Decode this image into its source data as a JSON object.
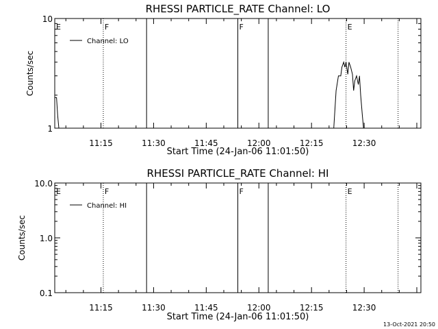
{
  "footer": {
    "timestamp": "13-Oct-2021 20:50"
  },
  "chart_data": [
    {
      "type": "line",
      "title": "RHESSI PARTICLE_RATE Channel: LO",
      "xlabel": "Start Time (24-Jan-06 11:01:50)",
      "ylabel": "Counts/sec",
      "yscale": "log",
      "xlim": [
        "11:01:50",
        "12:46:10"
      ],
      "ylim": [
        1,
        10
      ],
      "xticks": [
        "11:15",
        "11:30",
        "11:45",
        "12:00",
        "12:15",
        "12:30"
      ],
      "yticks": [
        "1",
        "10"
      ],
      "legend": {
        "label": "Channel: LO",
        "position": "top-left"
      },
      "annotations": [
        {
          "text": "E",
          "time": "11:01:50",
          "line": "none"
        },
        {
          "text": "F",
          "time": "11:15:40",
          "line": "dotted"
        },
        {
          "text": "",
          "time": "11:28:00",
          "line": "solid"
        },
        {
          "text": "F",
          "time": "11:54:00",
          "line": "solid"
        },
        {
          "text": "",
          "time": "12:02:40",
          "line": "solid"
        },
        {
          "text": "E",
          "time": "12:24:50",
          "line": "dotted"
        },
        {
          "text": "",
          "time": "12:39:40",
          "line": "dotted"
        }
      ],
      "series": [
        {
          "values": [
            [
              "11:01:50",
              1.9
            ],
            [
              "11:02:20",
              1.9
            ],
            [
              "11:02:40",
              1.3
            ],
            [
              "11:03:00",
              1.0
            ],
            [
              "12:21:20",
              1.0
            ],
            [
              "12:22:00",
              2.2
            ],
            [
              "12:22:40",
              3.0
            ],
            [
              "12:23:20",
              3.0
            ],
            [
              "12:23:40",
              3.6
            ],
            [
              "12:24:10",
              4.0
            ],
            [
              "12:24:30",
              3.6
            ],
            [
              "12:24:50",
              4.0
            ],
            [
              "12:25:20",
              3.1
            ],
            [
              "12:25:40",
              4.0
            ],
            [
              "12:26:10",
              3.6
            ],
            [
              "12:26:40",
              3.1
            ],
            [
              "12:27:00",
              2.2
            ],
            [
              "12:27:20",
              2.7
            ],
            [
              "12:27:50",
              3.0
            ],
            [
              "12:28:20",
              2.5
            ],
            [
              "12:28:40",
              3.0
            ],
            [
              "12:29:00",
              2.0
            ],
            [
              "12:29:30",
              1.3
            ],
            [
              "12:29:50",
              1.0
            ]
          ]
        }
      ]
    },
    {
      "type": "line",
      "title": "RHESSI PARTICLE_RATE Channel: HI",
      "xlabel": "Start Time (24-Jan-06 11:01:50)",
      "ylabel": "Counts/sec",
      "yscale": "log",
      "xlim": [
        "11:01:50",
        "12:46:10"
      ],
      "ylim": [
        0.1,
        10
      ],
      "xticks": [
        "11:15",
        "11:30",
        "11:45",
        "12:00",
        "12:15",
        "12:30"
      ],
      "yticks": [
        "0.1",
        "1.0",
        "10.0"
      ],
      "legend": {
        "label": "Channel: HI",
        "position": "top-left"
      },
      "annotations": [
        {
          "text": "E",
          "time": "11:01:50",
          "line": "none"
        },
        {
          "text": "F",
          "time": "11:15:40",
          "line": "dotted"
        },
        {
          "text": "",
          "time": "11:28:00",
          "line": "solid"
        },
        {
          "text": "F",
          "time": "11:54:00",
          "line": "solid"
        },
        {
          "text": "",
          "time": "12:02:40",
          "line": "solid"
        },
        {
          "text": "E",
          "time": "12:24:50",
          "line": "dotted"
        },
        {
          "text": "",
          "time": "12:39:40",
          "line": "dotted"
        }
      ],
      "series": []
    }
  ]
}
